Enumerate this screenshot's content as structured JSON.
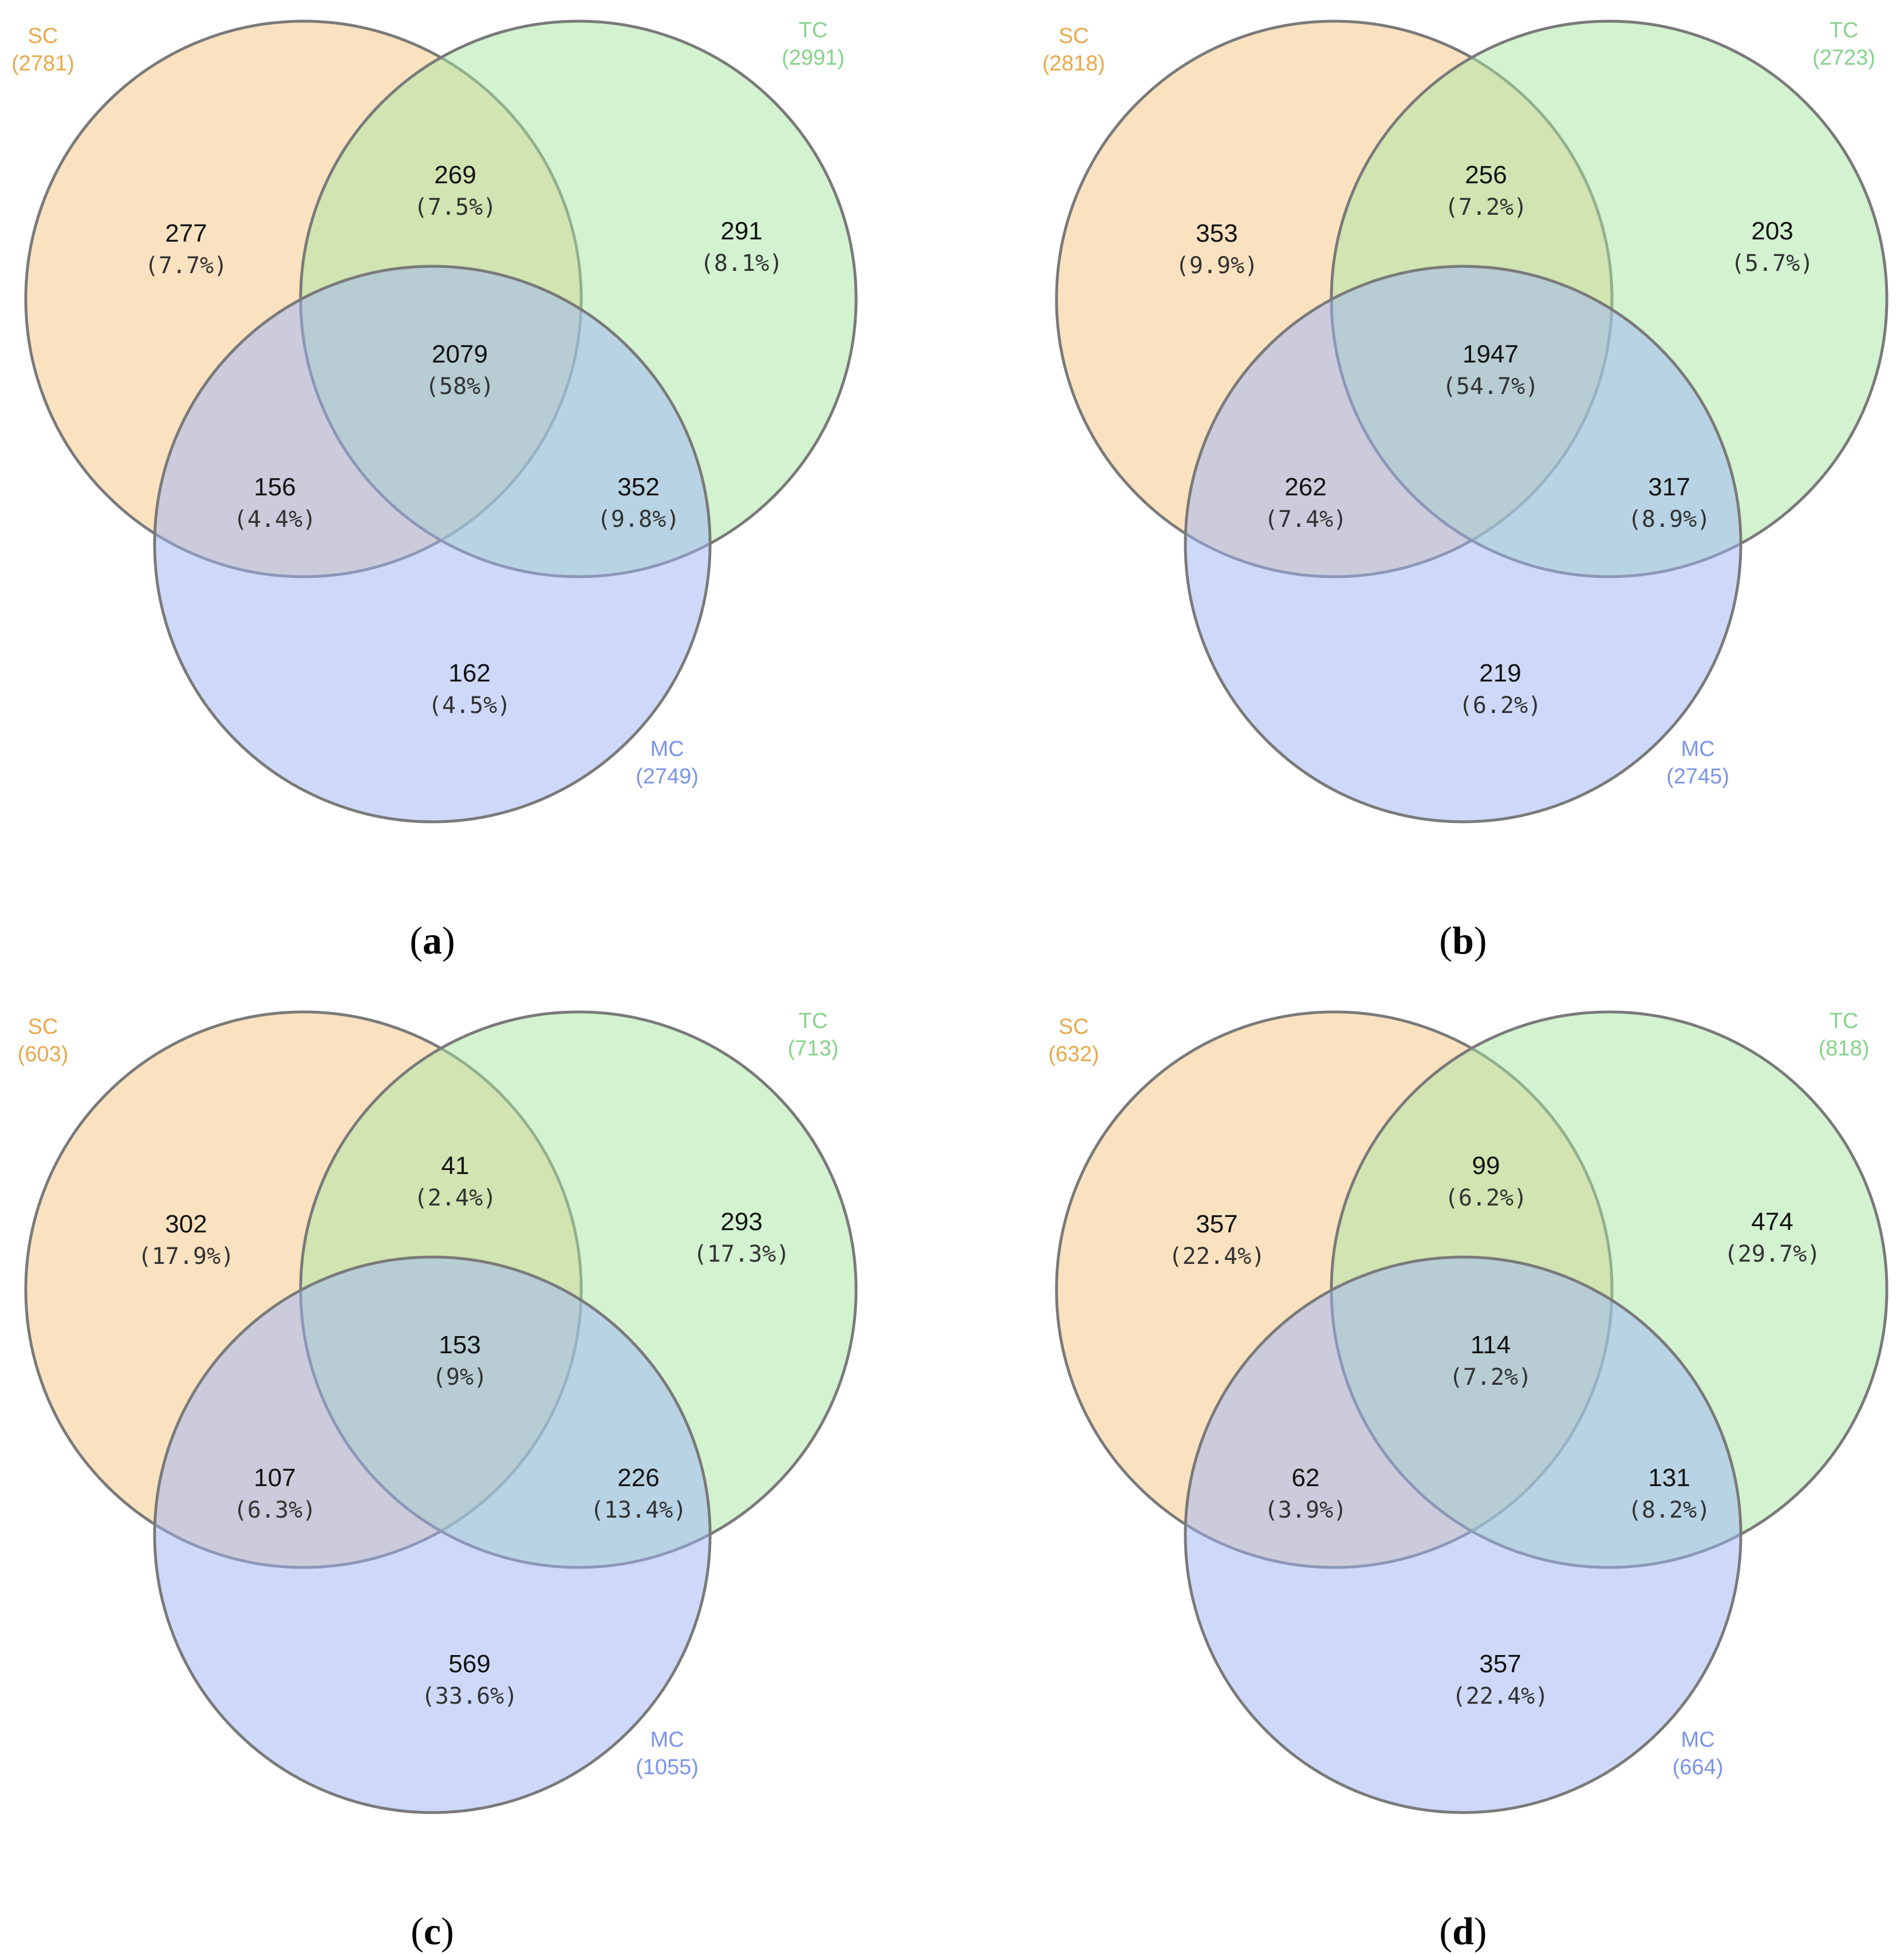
{
  "colors": {
    "SC": "#f5c682",
    "TC": "#a8e6a2",
    "MC": "#9db4f6",
    "SC_label": "#e8a84a",
    "TC_label": "#86d38a",
    "MC_label": "#7b94ea",
    "outline": "#7a7a7a"
  },
  "panels": [
    {
      "label": "a",
      "sets": {
        "SC": {
          "name": "SC",
          "total": "(2781)"
        },
        "TC": {
          "name": "TC",
          "total": "(2991)"
        },
        "MC": {
          "name": "MC",
          "total": "(2749)"
        }
      },
      "regions": {
        "sc_only": {
          "count": "277",
          "pct": "(7.7%)"
        },
        "sc_tc": {
          "count": "269",
          "pct": "(7.5%)"
        },
        "tc_only": {
          "count": "291",
          "pct": "(8.1%)"
        },
        "all": {
          "count": "2079",
          "pct": "(58%)"
        },
        "sc_mc": {
          "count": "156",
          "pct": "(4.4%)"
        },
        "tc_mc": {
          "count": "352",
          "pct": "(9.8%)"
        },
        "mc_only": {
          "count": "162",
          "pct": "(4.5%)"
        }
      }
    },
    {
      "label": "b",
      "sets": {
        "SC": {
          "name": "SC",
          "total": "(2818)"
        },
        "TC": {
          "name": "TC",
          "total": "(2723)"
        },
        "MC": {
          "name": "MC",
          "total": "(2745)"
        }
      },
      "regions": {
        "sc_only": {
          "count": "353",
          "pct": "(9.9%)"
        },
        "sc_tc": {
          "count": "256",
          "pct": "(7.2%)"
        },
        "tc_only": {
          "count": "203",
          "pct": "(5.7%)"
        },
        "all": {
          "count": "1947",
          "pct": "(54.7%)"
        },
        "sc_mc": {
          "count": "262",
          "pct": "(7.4%)"
        },
        "tc_mc": {
          "count": "317",
          "pct": "(8.9%)"
        },
        "mc_only": {
          "count": "219",
          "pct": "(6.2%)"
        }
      }
    },
    {
      "label": "c",
      "sets": {
        "SC": {
          "name": "SC",
          "total": "(603)"
        },
        "TC": {
          "name": "TC",
          "total": "(713)"
        },
        "MC": {
          "name": "MC",
          "total": "(1055)"
        }
      },
      "regions": {
        "sc_only": {
          "count": "302",
          "pct": "(17.9%)"
        },
        "sc_tc": {
          "count": "41",
          "pct": "(2.4%)"
        },
        "tc_only": {
          "count": "293",
          "pct": "(17.3%)"
        },
        "all": {
          "count": "153",
          "pct": "(9%)"
        },
        "sc_mc": {
          "count": "107",
          "pct": "(6.3%)"
        },
        "tc_mc": {
          "count": "226",
          "pct": "(13.4%)"
        },
        "mc_only": {
          "count": "569",
          "pct": "(33.6%)"
        }
      }
    },
    {
      "label": "d",
      "sets": {
        "SC": {
          "name": "SC",
          "total": "(632)"
        },
        "TC": {
          "name": "TC",
          "total": "(818)"
        },
        "MC": {
          "name": "MC",
          "total": "(664)"
        }
      },
      "regions": {
        "sc_only": {
          "count": "357",
          "pct": "(22.4%)"
        },
        "sc_tc": {
          "count": "99",
          "pct": "(6.2%)"
        },
        "tc_only": {
          "count": "474",
          "pct": "(29.7%)"
        },
        "all": {
          "count": "114",
          "pct": "(7.2%)"
        },
        "sc_mc": {
          "count": "62",
          "pct": "(3.9%)"
        },
        "tc_mc": {
          "count": "131",
          "pct": "(8.2%)"
        },
        "mc_only": {
          "count": "357",
          "pct": "(22.4%)"
        }
      }
    }
  ]
}
